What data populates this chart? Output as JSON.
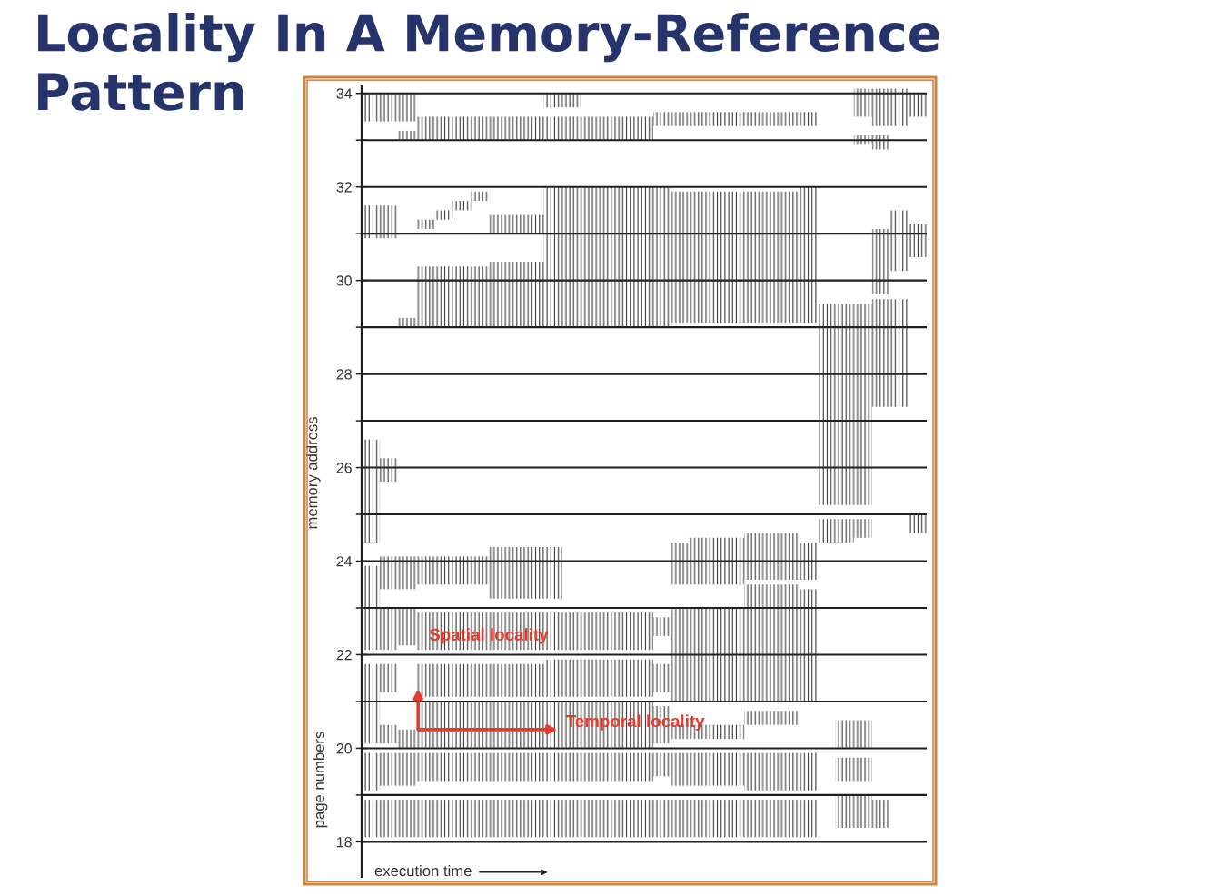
{
  "chart_data": {
    "type": "bar",
    "title": "Locality In A Memory-Reference Pattern",
    "xlabel": "execution time",
    "ylabel": "memory address",
    "annotations": [
      {
        "text": "Spatial locality",
        "y": 22.4
      },
      {
        "text": "Temporal locality",
        "y": 20.55
      },
      "page numbers"
    ],
    "categories": [
      null,
      null,
      null,
      null,
      null,
      null,
      null,
      null,
      null,
      null,
      null,
      null,
      null,
      null,
      null,
      null,
      null,
      null,
      null,
      null,
      null,
      null,
      null,
      null,
      null,
      null,
      null,
      null,
      null,
      null,
      null
    ],
    "ylim": [
      17.25,
      34.15
    ],
    "yticks": [
      18,
      {
        "value": 19,
        "label": null
      },
      20,
      {
        "value": 21,
        "label": null
      },
      22,
      {
        "value": 23,
        "label": null
      },
      24,
      {
        "value": 25,
        "label": null
      },
      26,
      {
        "value": 27,
        "label": null
      },
      28,
      {
        "value": 29,
        "label": null
      },
      30,
      {
        "value": 31,
        "label": null
      },
      32,
      {
        "value": 33,
        "label": null
      },
      34
    ],
    "grid": "y",
    "series": [
      {
        "color": "#2b2b2b",
        "base": [
          18.1,
          18.1,
          18.1,
          18.1,
          18.1,
          18.1,
          18.1,
          18.1,
          18.1,
          18.1,
          18.1,
          18.1,
          18.1,
          18.1,
          18.1,
          18.1,
          18.1,
          18.1,
          18.1,
          18.1,
          18.1,
          18.1,
          18.1,
          18.1,
          18.1,
          null,
          18.3,
          18.3,
          18.3,
          null,
          null
        ],
        "values": [
          0.8,
          0.8,
          0.8,
          0.8,
          0.8,
          0.8,
          0.8,
          0.8,
          0.8,
          0.8,
          0.8,
          0.8,
          0.8,
          0.8,
          0.8,
          0.8,
          0.8,
          0.8,
          0.8,
          0.8,
          0.8,
          0.8,
          0.8,
          0.8,
          0.8,
          null,
          0.7,
          0.7,
          0.6,
          null,
          null
        ]
      },
      {
        "color": "#2b2b2b",
        "base": [
          19.1,
          19.2,
          19.2,
          19.3,
          19.3,
          19.3,
          19.3,
          19.3,
          19.3,
          19.3,
          19.3,
          19.3,
          19.3,
          19.3,
          19.3,
          19.3,
          19.4,
          19.2,
          19.2,
          19.2,
          19.2,
          19.1,
          19.1,
          19.1,
          19.1,
          null,
          19.3,
          19.3,
          null,
          null,
          null
        ],
        "values": [
          0.8,
          0.7,
          0.7,
          0.6,
          0.6,
          0.6,
          0.6,
          0.6,
          0.6,
          0.6,
          0.6,
          0.6,
          0.6,
          0.6,
          0.6,
          0.6,
          0.5,
          0.7,
          0.7,
          0.7,
          0.7,
          0.8,
          0.8,
          0.8,
          0.8,
          null,
          0.5,
          0.5,
          null,
          null,
          null
        ]
      },
      {
        "color": "#2b2b2b",
        "base": [
          20.1,
          20.1,
          20.0,
          20.0,
          20.0,
          20.0,
          20.0,
          20.0,
          20.0,
          20.0,
          20.0,
          20.0,
          20.0,
          20.0,
          20.0,
          20.0,
          20.1,
          20.2,
          20.2,
          20.2,
          20.2,
          20.5,
          20.5,
          20.5,
          null,
          null,
          20.0,
          20.0,
          null,
          null,
          null
        ],
        "values": [
          1.7,
          0.4,
          0.4,
          1.0,
          1.0,
          1.0,
          1.0,
          1.0,
          1.0,
          1.0,
          1.0,
          1.0,
          1.0,
          1.0,
          1.0,
          1.0,
          0.8,
          0.3,
          0.3,
          0.3,
          0.3,
          0.3,
          0.3,
          0.3,
          null,
          null,
          0.6,
          0.6,
          null,
          null,
          null
        ]
      },
      {
        "color": "#2b2b2b",
        "base": [
          null,
          21.2,
          null,
          21.1,
          21.1,
          21.1,
          21.1,
          21.1,
          21.1,
          21.1,
          21.1,
          21.1,
          21.1,
          21.1,
          21.1,
          21.1,
          21.2,
          21.0,
          21.0,
          21.0,
          21.0,
          21.0,
          21.0,
          21.0,
          21.0,
          null,
          null,
          null,
          null,
          null,
          null
        ],
        "values": [
          null,
          0.6,
          null,
          0.7,
          0.7,
          0.7,
          0.7,
          0.7,
          0.7,
          0.7,
          0.8,
          0.8,
          0.8,
          0.8,
          0.8,
          0.8,
          0.6,
          2.0,
          2.0,
          2.0,
          2.0,
          2.5,
          2.5,
          2.5,
          2.4,
          null,
          null,
          null,
          null,
          null,
          null
        ]
      },
      {
        "color": "#2b2b2b",
        "base": [
          22.1,
          22.1,
          22.2,
          22.1,
          22.1,
          22.1,
          22.1,
          22.1,
          22.1,
          22.1,
          22.1,
          22.1,
          22.1,
          22.1,
          22.1,
          22.1,
          22.4,
          null,
          null,
          null,
          null,
          null,
          null,
          null,
          null,
          null,
          null,
          null,
          null,
          null,
          null
        ],
        "values": [
          1.8,
          0.9,
          0.8,
          0.8,
          0.8,
          0.8,
          0.8,
          0.8,
          0.8,
          0.8,
          0.8,
          0.8,
          0.8,
          0.8,
          0.8,
          0.8,
          0.4,
          null,
          null,
          null,
          null,
          null,
          null,
          null,
          null,
          null,
          null,
          null,
          null,
          null,
          null
        ]
      },
      {
        "color": "#2b2b2b",
        "base": [
          null,
          23.4,
          23.4,
          23.5,
          23.5,
          23.5,
          23.5,
          23.2,
          23.2,
          23.2,
          23.2,
          null,
          null,
          null,
          null,
          null,
          null,
          23.5,
          23.5,
          23.5,
          23.5,
          23.6,
          23.6,
          23.6,
          23.6,
          24.4,
          24.4,
          24.5,
          null,
          null,
          24.6
        ],
        "values": [
          null,
          0.7,
          0.7,
          0.6,
          0.6,
          0.6,
          0.6,
          1.1,
          1.1,
          1.1,
          1.1,
          null,
          null,
          null,
          null,
          null,
          null,
          0.9,
          1.0,
          1.0,
          1.0,
          1.0,
          1.0,
          1.0,
          0.8,
          0.5,
          0.5,
          0.4,
          null,
          null,
          0.4
        ]
      },
      {
        "color": "#2b2b2b",
        "base": [
          24.4,
          25.7,
          null,
          null,
          null,
          null,
          null,
          null,
          null,
          null,
          null,
          null,
          null,
          null,
          null,
          null,
          null,
          null,
          null,
          null,
          null,
          null,
          null,
          null,
          null,
          25.2,
          25.2,
          25.2,
          27.3,
          27.3,
          null
        ],
        "values": [
          2.2,
          0.5,
          null,
          null,
          null,
          null,
          null,
          null,
          null,
          null,
          null,
          null,
          null,
          null,
          null,
          null,
          null,
          null,
          null,
          null,
          null,
          null,
          null,
          null,
          null,
          4.3,
          4.3,
          4.3,
          2.3,
          2.3,
          null
        ]
      },
      {
        "color": "#2b2b2b",
        "base": [
          30.9,
          30.9,
          29.0,
          29.0,
          29.0,
          29.0,
          29.0,
          29.0,
          29.0,
          29.0,
          29.0,
          29.0,
          29.0,
          29.0,
          29.0,
          29.0,
          29.0,
          29.1,
          29.1,
          29.1,
          29.1,
          29.1,
          29.1,
          29.1,
          29.1,
          null,
          null,
          null,
          29.7,
          30.2,
          30.5
        ],
        "values": [
          0.7,
          0.7,
          0.2,
          1.3,
          1.3,
          1.3,
          1.3,
          1.4,
          1.4,
          1.4,
          3.0,
          3.0,
          3.0,
          3.0,
          3.0,
          3.0,
          3.0,
          2.8,
          2.8,
          2.8,
          2.8,
          2.8,
          2.8,
          2.8,
          2.9,
          null,
          null,
          null,
          1.4,
          1.3,
          0.7
        ]
      },
      {
        "color": "#2b2b2b",
        "base": [
          null,
          null,
          null,
          31.1,
          31.3,
          31.5,
          31.7,
          31.0,
          31.0,
          31.0,
          null,
          null,
          null,
          null,
          null,
          null,
          null,
          null,
          null,
          null,
          null,
          null,
          null,
          null,
          null,
          null,
          null,
          null,
          null,
          null,
          null
        ],
        "values": [
          null,
          null,
          null,
          0.2,
          0.2,
          0.2,
          0.2,
          0.4,
          0.4,
          0.4,
          null,
          null,
          null,
          null,
          null,
          null,
          null,
          null,
          null,
          null,
          null,
          null,
          null,
          null,
          null,
          null,
          null,
          null,
          null,
          null,
          null
        ]
      },
      {
        "color": "#2b2b2b",
        "base": [
          null,
          null,
          33.0,
          33.0,
          33.0,
          33.0,
          33.0,
          33.0,
          33.0,
          33.0,
          33.0,
          33.0,
          33.0,
          33.0,
          33.0,
          33.0,
          33.3,
          33.3,
          33.3,
          33.3,
          33.3,
          33.3,
          33.3,
          33.3,
          33.3,
          null,
          null,
          32.9,
          32.8,
          null,
          null
        ],
        "values": [
          null,
          null,
          0.2,
          0.5,
          0.5,
          0.5,
          0.5,
          0.5,
          0.5,
          0.5,
          0.5,
          0.5,
          0.5,
          0.5,
          0.5,
          0.5,
          0.3,
          0.3,
          0.3,
          0.3,
          0.3,
          0.3,
          0.3,
          0.3,
          0.3,
          null,
          null,
          0.2,
          0.3,
          null,
          null
        ]
      },
      {
        "color": "#2b2b2b",
        "base": [
          33.4,
          33.4,
          33.4,
          null,
          null,
          null,
          null,
          null,
          null,
          null,
          33.7,
          33.7,
          null,
          null,
          null,
          null,
          null,
          null,
          null,
          null,
          null,
          null,
          null,
          null,
          null,
          null,
          null,
          33.5,
          33.3,
          33.3,
          33.5
        ],
        "values": [
          0.6,
          0.6,
          0.6,
          null,
          null,
          null,
          null,
          null,
          null,
          null,
          0.3,
          0.3,
          null,
          null,
          null,
          null,
          null,
          null,
          null,
          null,
          null,
          null,
          null,
          null,
          null,
          null,
          null,
          0.6,
          0.8,
          0.8,
          0.5
        ]
      }
    ]
  }
}
